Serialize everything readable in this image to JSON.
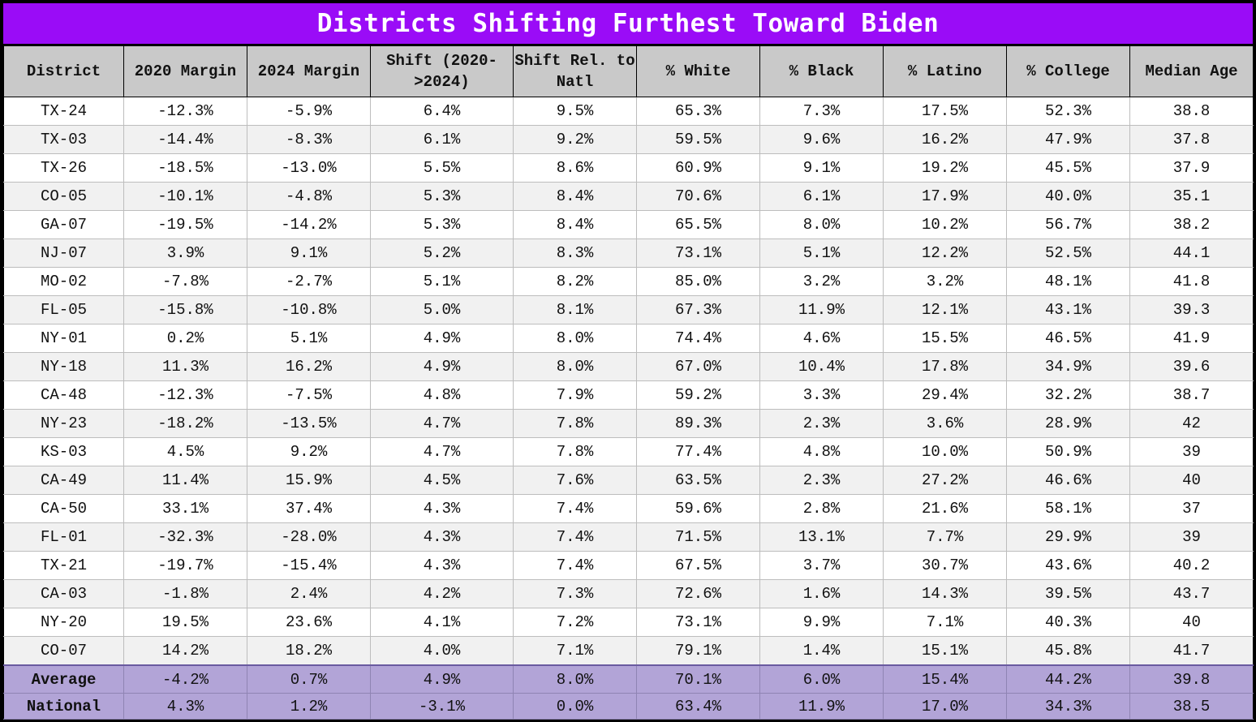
{
  "title": "Districts Shifting Furthest Toward Biden",
  "colors": {
    "title_bg": "#9a0cf7",
    "header_bg": "#c9c9c9",
    "footer_bg": "#b2a4d7"
  },
  "chart_data": {
    "type": "table",
    "title": "Districts Shifting Furthest Toward Biden",
    "columns": [
      "District",
      "2020 Margin",
      "2024 Margin",
      "Shift (2020->2024)",
      "Shift Rel. to Natl",
      "% White",
      "% Black",
      "% Latino",
      "% College",
      "Median Age"
    ],
    "rows": [
      [
        "TX-24",
        "-12.3%",
        "-5.9%",
        "6.4%",
        "9.5%",
        "65.3%",
        "7.3%",
        "17.5%",
        "52.3%",
        "38.8"
      ],
      [
        "TX-03",
        "-14.4%",
        "-8.3%",
        "6.1%",
        "9.2%",
        "59.5%",
        "9.6%",
        "16.2%",
        "47.9%",
        "37.8"
      ],
      [
        "TX-26",
        "-18.5%",
        "-13.0%",
        "5.5%",
        "8.6%",
        "60.9%",
        "9.1%",
        "19.2%",
        "45.5%",
        "37.9"
      ],
      [
        "CO-05",
        "-10.1%",
        "-4.8%",
        "5.3%",
        "8.4%",
        "70.6%",
        "6.1%",
        "17.9%",
        "40.0%",
        "35.1"
      ],
      [
        "GA-07",
        "-19.5%",
        "-14.2%",
        "5.3%",
        "8.4%",
        "65.5%",
        "8.0%",
        "10.2%",
        "56.7%",
        "38.2"
      ],
      [
        "NJ-07",
        "3.9%",
        "9.1%",
        "5.2%",
        "8.3%",
        "73.1%",
        "5.1%",
        "12.2%",
        "52.5%",
        "44.1"
      ],
      [
        "MO-02",
        "-7.8%",
        "-2.7%",
        "5.1%",
        "8.2%",
        "85.0%",
        "3.2%",
        "3.2%",
        "48.1%",
        "41.8"
      ],
      [
        "FL-05",
        "-15.8%",
        "-10.8%",
        "5.0%",
        "8.1%",
        "67.3%",
        "11.9%",
        "12.1%",
        "43.1%",
        "39.3"
      ],
      [
        "NY-01",
        "0.2%",
        "5.1%",
        "4.9%",
        "8.0%",
        "74.4%",
        "4.6%",
        "15.5%",
        "46.5%",
        "41.9"
      ],
      [
        "NY-18",
        "11.3%",
        "16.2%",
        "4.9%",
        "8.0%",
        "67.0%",
        "10.4%",
        "17.8%",
        "34.9%",
        "39.6"
      ],
      [
        "CA-48",
        "-12.3%",
        "-7.5%",
        "4.8%",
        "7.9%",
        "59.2%",
        "3.3%",
        "29.4%",
        "32.2%",
        "38.7"
      ],
      [
        "NY-23",
        "-18.2%",
        "-13.5%",
        "4.7%",
        "7.8%",
        "89.3%",
        "2.3%",
        "3.6%",
        "28.9%",
        "42"
      ],
      [
        "KS-03",
        "4.5%",
        "9.2%",
        "4.7%",
        "7.8%",
        "77.4%",
        "4.8%",
        "10.0%",
        "50.9%",
        "39"
      ],
      [
        "CA-49",
        "11.4%",
        "15.9%",
        "4.5%",
        "7.6%",
        "63.5%",
        "2.3%",
        "27.2%",
        "46.6%",
        "40"
      ],
      [
        "CA-50",
        "33.1%",
        "37.4%",
        "4.3%",
        "7.4%",
        "59.6%",
        "2.8%",
        "21.6%",
        "58.1%",
        "37"
      ],
      [
        "FL-01",
        "-32.3%",
        "-28.0%",
        "4.3%",
        "7.4%",
        "71.5%",
        "13.1%",
        "7.7%",
        "29.9%",
        "39"
      ],
      [
        "TX-21",
        "-19.7%",
        "-15.4%",
        "4.3%",
        "7.4%",
        "67.5%",
        "3.7%",
        "30.7%",
        "43.6%",
        "40.2"
      ],
      [
        "CA-03",
        "-1.8%",
        "2.4%",
        "4.2%",
        "7.3%",
        "72.6%",
        "1.6%",
        "14.3%",
        "39.5%",
        "43.7"
      ],
      [
        "NY-20",
        "19.5%",
        "23.6%",
        "4.1%",
        "7.2%",
        "73.1%",
        "9.9%",
        "7.1%",
        "40.3%",
        "40"
      ],
      [
        "CO-07",
        "14.2%",
        "18.2%",
        "4.0%",
        "7.1%",
        "79.1%",
        "1.4%",
        "15.1%",
        "45.8%",
        "41.7"
      ]
    ],
    "summary_rows": [
      [
        "Average",
        "-4.2%",
        "0.7%",
        "4.9%",
        "8.0%",
        "70.1%",
        "6.0%",
        "15.4%",
        "44.2%",
        "39.8"
      ],
      [
        "National",
        "4.3%",
        "1.2%",
        "-3.1%",
        "0.0%",
        "63.4%",
        "11.9%",
        "17.0%",
        "34.3%",
        "38.5"
      ]
    ]
  }
}
